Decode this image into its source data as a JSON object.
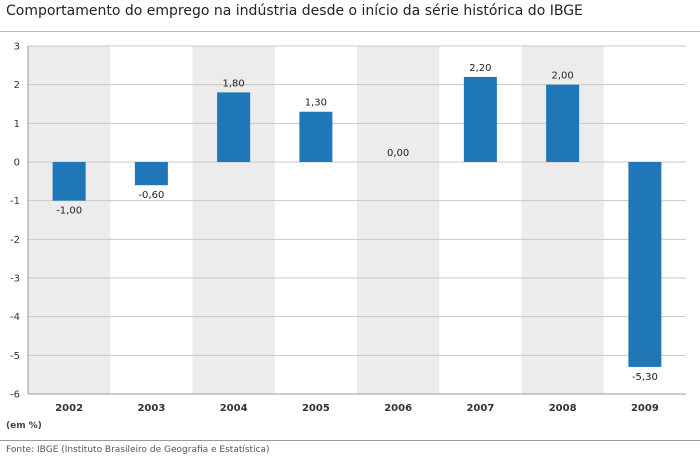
{
  "chart_data": {
    "type": "bar",
    "title": "Comportamento do emprego na indústria desde o início da série histórica do IBGE",
    "categories": [
      "2002",
      "2003",
      "2004",
      "2005",
      "2006",
      "2007",
      "2008",
      "2009"
    ],
    "values": [
      -1.0,
      -0.6,
      1.8,
      1.3,
      0.0,
      2.2,
      2.0,
      -5.3
    ],
    "data_labels": [
      "-1,00",
      "-0,60",
      "1,80",
      "1,30",
      "0,00",
      "2,20",
      "2,00",
      "-5,30"
    ],
    "ylim": [
      -6,
      3
    ],
    "yticks": [
      3,
      2,
      1,
      0,
      -1,
      -2,
      -3,
      -4,
      -5,
      -6
    ],
    "ytick_labels": [
      "3",
      "2",
      "1",
      "0",
      "-1",
      "-2",
      "-3",
      "-4",
      "-5",
      "-6"
    ],
    "unit_note": "(em %)",
    "source": "Fonte: IBGE (Instituto Brasileiro de Geografia e Estatística)",
    "grid": true,
    "alternating_bands": true,
    "bar_color": "#1f77b8",
    "band_color": "#ececec",
    "gridline_color": "#c8c8c8"
  }
}
